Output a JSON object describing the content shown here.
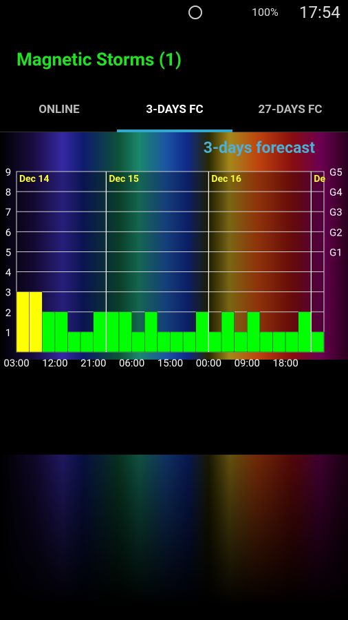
{
  "status_bar": {
    "battery": "100%",
    "time": "17:54"
  },
  "app_title": "Magnetic Storms (1)",
  "tabs": [
    "ONLINE",
    "3-DAYS FC",
    "27-DAYS FC"
  ],
  "chart_data": {
    "type": "bar",
    "title": "3-days forecast",
    "categories": [
      "03:00",
      null,
      null,
      "12:00",
      null,
      null,
      "21:00",
      null,
      null,
      "06:00",
      null,
      null,
      "15:00",
      null,
      null,
      "00:00",
      null,
      null,
      "09:00",
      null,
      null,
      "18:00",
      null,
      null
    ],
    "values": [
      3,
      3,
      2,
      2,
      1,
      1,
      2,
      2,
      2,
      1,
      2,
      1,
      1,
      1,
      2,
      1,
      2,
      1,
      2,
      1,
      1,
      1,
      2,
      1
    ],
    "colors": [
      "#ffff00",
      "#ffff00",
      "#00ff00",
      "#00ff00",
      "#00ff00",
      "#00ff00",
      "#00ff00",
      "#00ff00",
      "#00ff00",
      "#00ff00",
      "#00ff00",
      "#00ff00",
      "#00ff00",
      "#00ff00",
      "#00ff00",
      "#00ff00",
      "#00ff00",
      "#00ff00",
      "#00ff00",
      "#00ff00",
      "#00ff00",
      "#00ff00",
      "#00ff00",
      "#00ff00"
    ],
    "day_labels": [
      {
        "label": "Dec 14",
        "category": 0
      },
      {
        "label": "Dec 15",
        "category": 7
      },
      {
        "label": "Dec 16",
        "category": 15
      },
      {
        "label": "De",
        "category": 23
      }
    ],
    "ylim": [
      0,
      9
    ],
    "yticks": [
      1,
      2,
      3,
      4,
      5,
      6,
      7,
      8,
      9
    ],
    "y2lim": [
      0,
      9
    ],
    "y2ticks": [
      {
        "value": 5,
        "label": "G1"
      },
      {
        "value": 6,
        "label": "G2"
      },
      {
        "value": 7,
        "label": "G3"
      },
      {
        "value": 8,
        "label": "G4"
      },
      {
        "value": 9,
        "label": "G5"
      }
    ],
    "grid": true
  }
}
